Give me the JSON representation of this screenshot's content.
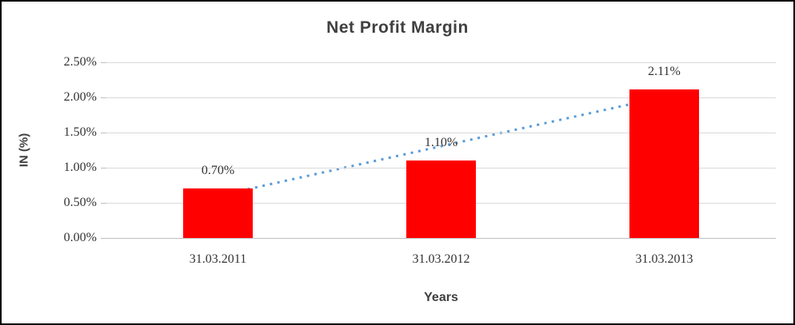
{
  "chart_data": {
    "type": "bar",
    "title": "Net Profit Margin",
    "xlabel": "Years",
    "ylabel": "IN (%)",
    "categories": [
      "31.03.2011",
      "31.03.2012",
      "31.03.2013"
    ],
    "values": [
      0.7,
      1.1,
      2.11
    ],
    "data_labels": [
      "0.70%",
      "1.10%",
      "2.11%"
    ],
    "ylim": [
      0,
      2.5
    ],
    "ytick_step": 0.5,
    "ytick_labels": [
      "0.00%",
      "0.50%",
      "1.00%",
      "1.50%",
      "2.00%",
      "2.50%"
    ],
    "grid": true,
    "legend": false,
    "bar_color": "#ff0000",
    "bar_width_frac": 0.31,
    "trendline": {
      "type": "linear",
      "style": "dotted",
      "color": "#5b9bd5",
      "start_value": 0.6,
      "end_value": 2.01
    },
    "colors": {
      "title_text": "#404040",
      "tick_text": "#333333",
      "gridline": "#d9d9d9",
      "axis_line": "#bfbfbf",
      "frame_border": "#000000"
    }
  }
}
